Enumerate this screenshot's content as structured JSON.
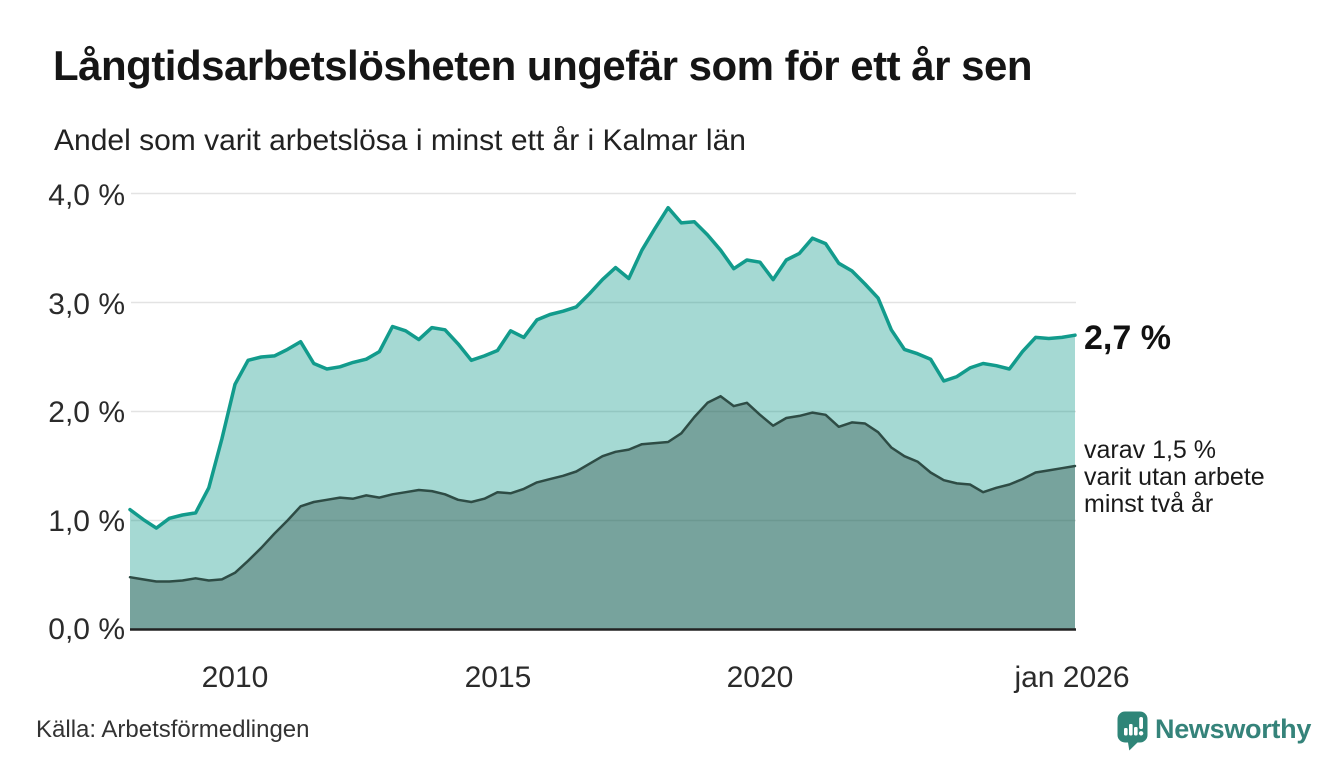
{
  "header": {
    "title": "Långtidsarbetslösheten ungefär som för ett år sen",
    "subtitle": "Andel som varit arbetslösa i minst ett år i Kalmar län"
  },
  "chart_data": {
    "type": "area",
    "title": "Långtidsarbetslösheten ungefär som för ett år sen",
    "subtitle": "Andel som varit arbetslösa i minst ett år i Kalmar län",
    "x_unit": "year",
    "x_start": 2008.0,
    "x_step": 0.25,
    "x": [
      2008.0,
      2008.25,
      2008.5,
      2008.75,
      2009.0,
      2009.25,
      2009.5,
      2009.75,
      2010.0,
      2010.25,
      2010.5,
      2010.75,
      2011.0,
      2011.25,
      2011.5,
      2011.75,
      2012.0,
      2012.25,
      2012.5,
      2012.75,
      2013.0,
      2013.25,
      2013.5,
      2013.75,
      2014.0,
      2014.25,
      2014.5,
      2014.75,
      2015.0,
      2015.25,
      2015.5,
      2015.75,
      2016.0,
      2016.25,
      2016.5,
      2016.75,
      2017.0,
      2017.25,
      2017.5,
      2017.75,
      2018.0,
      2018.25,
      2018.5,
      2018.75,
      2019.0,
      2019.25,
      2019.5,
      2019.75,
      2020.0,
      2020.25,
      2020.5,
      2020.75,
      2021.0,
      2021.25,
      2021.5,
      2021.75,
      2022.0,
      2022.25,
      2022.5,
      2022.75,
      2023.0,
      2023.25,
      2023.5,
      2023.75,
      2024.0,
      2024.25,
      2024.5,
      2024.75,
      2025.0,
      2025.25,
      2025.5,
      2025.75,
      2026.0
    ],
    "series": [
      {
        "name": "Andel som varit arbetslösa i minst ett år",
        "color": "#129b8c",
        "fill_opacity": 0.38,
        "line_width": 3.5,
        "end_value": "2,7 %",
        "values": [
          1.1,
          1.01,
          0.93,
          1.02,
          1.05,
          1.07,
          1.3,
          1.75,
          2.25,
          2.47,
          2.5,
          2.51,
          2.57,
          2.64,
          2.44,
          2.39,
          2.41,
          2.45,
          2.48,
          2.55,
          2.78,
          2.74,
          2.66,
          2.77,
          2.75,
          2.62,
          2.47,
          2.51,
          2.56,
          2.74,
          2.68,
          2.84,
          2.89,
          2.92,
          2.96,
          3.08,
          3.21,
          3.32,
          3.22,
          3.48,
          3.68,
          3.87,
          3.73,
          3.74,
          3.62,
          3.48,
          3.31,
          3.39,
          3.37,
          3.21,
          3.39,
          3.45,
          3.59,
          3.54,
          3.36,
          3.29,
          3.17,
          3.04,
          2.75,
          2.57,
          2.53,
          2.48,
          2.28,
          2.32,
          2.4,
          2.44,
          2.42,
          2.39,
          2.55,
          2.68,
          2.67,
          2.68,
          2.7
        ]
      },
      {
        "name": "varav utan arbete minst två år",
        "color": "#2e4c45",
        "fill_opacity": 0.38,
        "line_width": 2.5,
        "end_value": "1,5 %",
        "values": [
          0.48,
          0.46,
          0.44,
          0.44,
          0.45,
          0.47,
          0.45,
          0.46,
          0.52,
          0.63,
          0.75,
          0.88,
          1.0,
          1.13,
          1.17,
          1.19,
          1.21,
          1.2,
          1.23,
          1.21,
          1.24,
          1.26,
          1.28,
          1.27,
          1.24,
          1.19,
          1.17,
          1.2,
          1.26,
          1.25,
          1.29,
          1.35,
          1.38,
          1.41,
          1.45,
          1.52,
          1.59,
          1.63,
          1.65,
          1.7,
          1.71,
          1.72,
          1.8,
          1.95,
          2.08,
          2.14,
          2.05,
          2.08,
          1.97,
          1.87,
          1.94,
          1.96,
          1.99,
          1.97,
          1.86,
          1.9,
          1.89,
          1.81,
          1.67,
          1.59,
          1.54,
          1.44,
          1.37,
          1.34,
          1.33,
          1.26,
          1.3,
          1.33,
          1.38,
          1.44,
          1.46,
          1.48,
          1.5
        ]
      }
    ],
    "xlim": [
      2008,
      2026
    ],
    "ylim": [
      0,
      4
    ],
    "grid": true,
    "legend_position": "none",
    "y_ticks": [
      0,
      1,
      2,
      3,
      4
    ],
    "y_tick_labels": [
      "0,0 %",
      "1,0 %",
      "2,0 %",
      "3,0 %",
      "4,0 %"
    ],
    "x_ticks": [
      2010,
      2015,
      2020,
      2026
    ],
    "x_tick_labels": [
      "2010",
      "2015",
      "2020",
      "jan 2026"
    ],
    "annotations": {
      "end_value_label": "2,7 %",
      "secondary_label_lines": [
        "varav 1,5 %",
        "varit utan arbete",
        "minst två år"
      ]
    }
  },
  "colors": {
    "accent_teal": "#129b8c",
    "dark_series": "#2e4c45",
    "gridline": "#e3e3e3",
    "axis_line": "#222222",
    "brand_teal": "#35837a"
  },
  "footer": {
    "source": "Källa: Arbetsförmedlingen",
    "brand": "Newsworthy"
  }
}
